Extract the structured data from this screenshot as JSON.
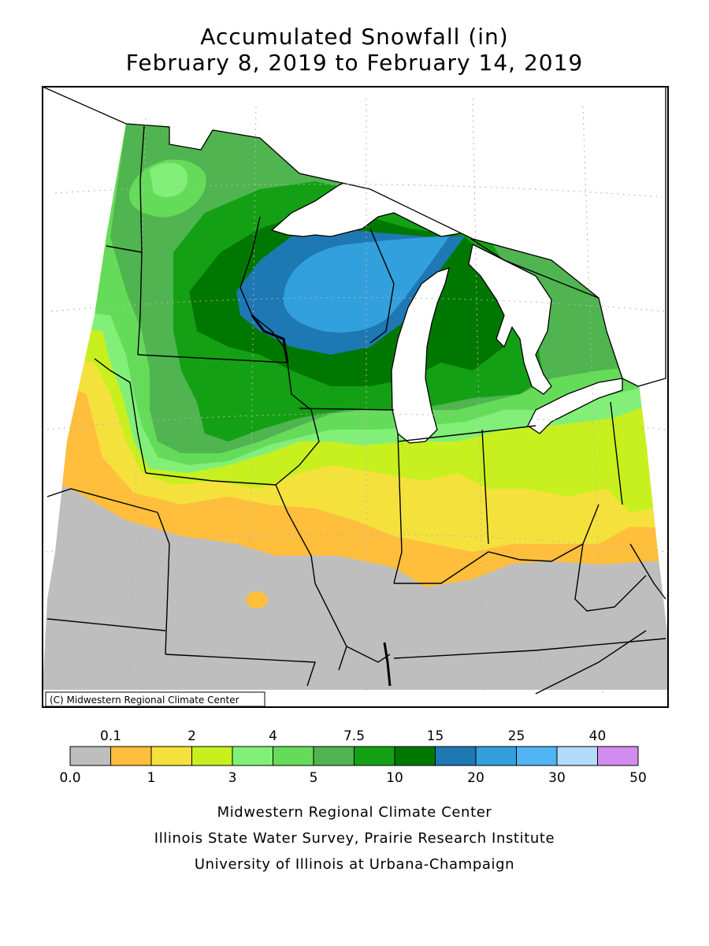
{
  "title": {
    "line1": "Accumulated Snowfall (in)",
    "line2": "February 8, 2019 to February 14, 2019"
  },
  "map": {
    "copyright": "(C) Midwestern Regional Climate Center",
    "colors": {
      "lake": "#ffffff",
      "border": "#000000",
      "grid": "#b4b4b4"
    }
  },
  "legend": {
    "bins": [
      {
        "range": "0.0-0.1",
        "color": "#bebebe"
      },
      {
        "range": "0.1-1",
        "color": "#ffbe3c"
      },
      {
        "range": "1-2",
        "color": "#f5e13c"
      },
      {
        "range": "2-3",
        "color": "#c8f01e"
      },
      {
        "range": "3-4",
        "color": "#82f078"
      },
      {
        "range": "4-5",
        "color": "#64dc5a"
      },
      {
        "range": "5-7.5",
        "color": "#50b450"
      },
      {
        "range": "7.5-10",
        "color": "#14a014"
      },
      {
        "range": "10-15",
        "color": "#007800"
      },
      {
        "range": "15-20",
        "color": "#1e78b4"
      },
      {
        "range": "20-25",
        "color": "#32a0dc"
      },
      {
        "range": "25-30",
        "color": "#50b4f0"
      },
      {
        "range": "30-40",
        "color": "#b4dcfa"
      },
      {
        "range": "40-50",
        "color": "#d28cf0"
      }
    ],
    "top_labels": [
      "0.1",
      "2",
      "4",
      "7.5",
      "15",
      "25",
      "40"
    ],
    "bottom_labels": [
      "0.0",
      "1",
      "3",
      "5",
      "10",
      "20",
      "30",
      "50"
    ]
  },
  "footer": {
    "line1": "Midwestern Regional Climate Center",
    "line2": "Illinois State Water Survey, Prairie Research Institute",
    "line3": "University of Illinois at Urbana-Champaign"
  }
}
